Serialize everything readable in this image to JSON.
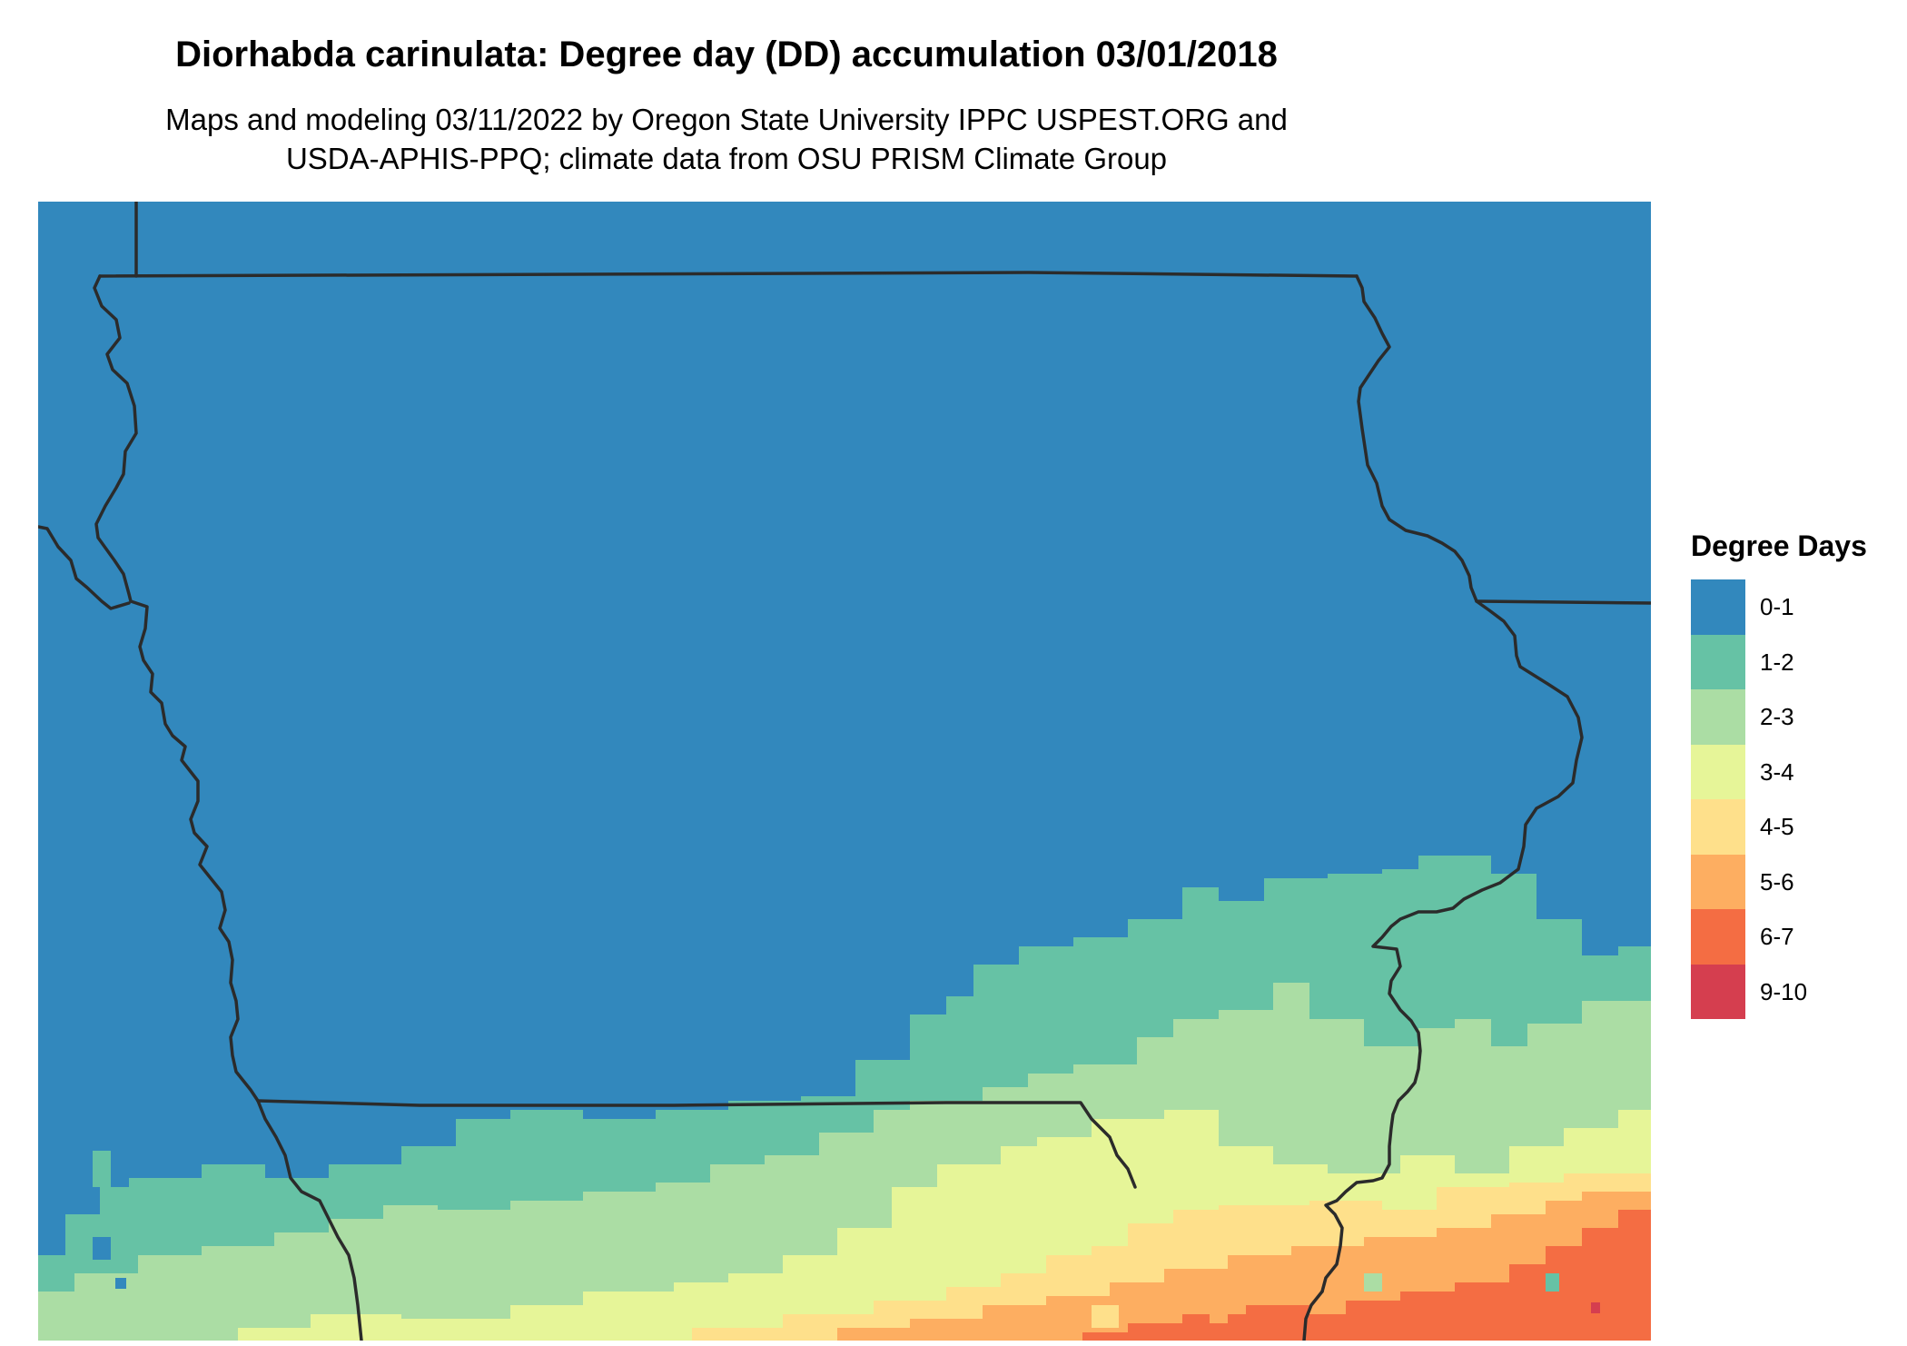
{
  "title": "Diorhabda carinulata: Degree day (DD) accumulation 03/01/2018",
  "subtitle_lines": [
    "Maps and modeling 03/11/2022 by Oregon State University IPPC USPEST.ORG and",
    "USDA-APHIS-PPQ; climate data from OSU PRISM Climate Group"
  ],
  "legend": {
    "title": "Degree Days",
    "items": [
      {
        "label": "0-1",
        "color": "#3288bd"
      },
      {
        "label": "1-2",
        "color": "#66c2a5"
      },
      {
        "label": "2-3",
        "color": "#abdda4"
      },
      {
        "label": "3-4",
        "color": "#e6f598"
      },
      {
        "label": "4-5",
        "color": "#fee08b"
      },
      {
        "label": "5-6",
        "color": "#fdae61"
      },
      {
        "label": "6-7",
        "color": "#f46d43"
      },
      {
        "label": "9-10",
        "color": "#d53e4f"
      }
    ]
  },
  "colors": {
    "border": "#2b2b2b",
    "background": "#ffffff"
  }
}
